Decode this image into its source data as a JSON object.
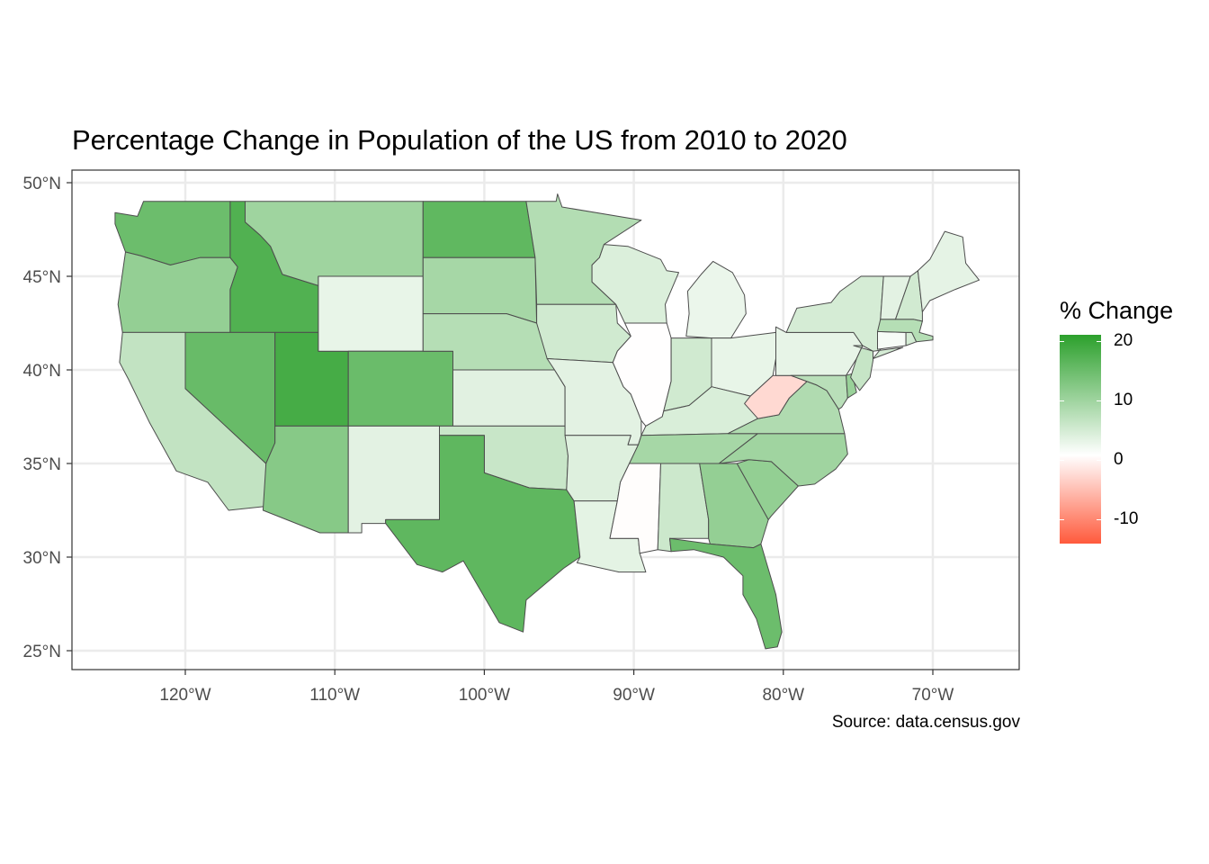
{
  "title": "Percentage Change in Population of the US from 2010 to 2020",
  "caption": "Source: data.census.gov",
  "legend": {
    "title": "% Change",
    "ticks": [
      "20",
      "10",
      "0",
      "-10"
    ],
    "tick_values": [
      20,
      10,
      0,
      -10
    ],
    "range": [
      -14,
      21
    ],
    "colors": {
      "high": "#2ca02c",
      "mid": "#ffffff",
      "low": "#ff5a3c"
    }
  },
  "axes": {
    "x_ticks": [
      "120°W",
      "110°W",
      "100°W",
      "90°W",
      "80°W",
      "70°W"
    ],
    "x_values": [
      -120,
      -110,
      -100,
      -90,
      -80,
      -70
    ],
    "y_ticks": [
      "50°N",
      "45°N",
      "40°N",
      "35°N",
      "30°N",
      "25°N"
    ],
    "y_values": [
      50,
      45,
      40,
      35,
      30,
      25
    ],
    "xlim": [
      -127.5,
      -64.5
    ],
    "ylim": [
      24,
      50.5
    ],
    "grid": true
  },
  "states": [
    {
      "name": "Washington",
      "value": 14.6
    },
    {
      "name": "Oregon",
      "value": 10.6
    },
    {
      "name": "California",
      "value": 6.1
    },
    {
      "name": "Idaho",
      "value": 17.3
    },
    {
      "name": "Nevada",
      "value": 15.0
    },
    {
      "name": "Utah",
      "value": 18.4
    },
    {
      "name": "Arizona",
      "value": 11.9
    },
    {
      "name": "Montana",
      "value": 9.6
    },
    {
      "name": "Wyoming",
      "value": 2.3
    },
    {
      "name": "Colorado",
      "value": 14.8
    },
    {
      "name": "New Mexico",
      "value": 2.8
    },
    {
      "name": "North Dakota",
      "value": 15.8
    },
    {
      "name": "South Dakota",
      "value": 8.9
    },
    {
      "name": "Nebraska",
      "value": 7.4
    },
    {
      "name": "Kansas",
      "value": 3.0
    },
    {
      "name": "Oklahoma",
      "value": 5.5
    },
    {
      "name": "Texas",
      "value": 15.9
    },
    {
      "name": "Minnesota",
      "value": 7.6
    },
    {
      "name": "Iowa",
      "value": 4.7
    },
    {
      "name": "Missouri",
      "value": 2.8
    },
    {
      "name": "Arkansas",
      "value": 3.3
    },
    {
      "name": "Louisiana",
      "value": 2.7
    },
    {
      "name": "Wisconsin",
      "value": 3.6
    },
    {
      "name": "Illinois",
      "value": -0.1
    },
    {
      "name": "Mississippi",
      "value": -0.2
    },
    {
      "name": "Michigan",
      "value": 2.0
    },
    {
      "name": "Indiana",
      "value": 4.7
    },
    {
      "name": "Ohio",
      "value": 2.3
    },
    {
      "name": "Kentucky",
      "value": 3.8
    },
    {
      "name": "Tennessee",
      "value": 8.9
    },
    {
      "name": "Alabama",
      "value": 5.1
    },
    {
      "name": "Georgia",
      "value": 10.6
    },
    {
      "name": "Florida",
      "value": 14.6
    },
    {
      "name": "South Carolina",
      "value": 10.7
    },
    {
      "name": "North Carolina",
      "value": 9.5
    },
    {
      "name": "Virginia",
      "value": 7.9
    },
    {
      "name": "West Virginia",
      "value": -3.2
    },
    {
      "name": "Pennsylvania",
      "value": 2.4
    },
    {
      "name": "New York",
      "value": 4.2
    },
    {
      "name": "Maryland",
      "value": 7.0
    },
    {
      "name": "Delaware",
      "value": 10.2
    },
    {
      "name": "New Jersey",
      "value": 5.7
    },
    {
      "name": "Connecticut",
      "value": 0.9
    },
    {
      "name": "Rhode Island",
      "value": 4.3
    },
    {
      "name": "Massachusetts",
      "value": 7.4
    },
    {
      "name": "Vermont",
      "value": 2.8
    },
    {
      "name": "New Hampshire",
      "value": 4.6
    },
    {
      "name": "Maine",
      "value": 2.6
    }
  ]
}
